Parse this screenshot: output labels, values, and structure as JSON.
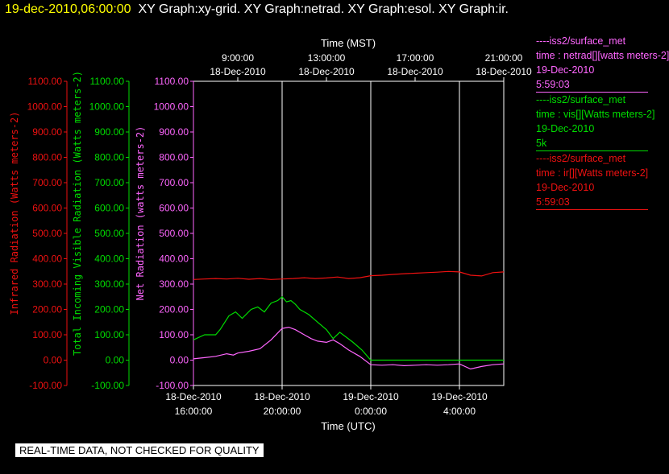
{
  "header": {
    "datetime": "19-dec-2010,06:00:00",
    "titles": "XY Graph:xy-grid.  XY Graph:netrad.  XY Graph:esol.  XY Graph:ir."
  },
  "legend": [
    {
      "color": "#ff66ff",
      "lines": [
        "----iss2/surface_met",
        "time : netrad[][watts meters-2]",
        "19-Dec-2010",
        "5:59:03"
      ]
    },
    {
      "color": "#00dd00",
      "lines": [
        "----iss2/surface_met",
        "time : vis[][Watts meters-2]",
        "19-Dec-2010",
        "5k"
      ]
    },
    {
      "color": "#ee1111",
      "lines": [
        "----iss2/surface_met",
        "time : ir[][Watts meters-2]",
        "19-Dec-2010",
        "5:59:03"
      ]
    }
  ],
  "note": "REAL-TIME DATA, NOT CHECKED FOR QUALITY",
  "colors": {
    "ir": "#ee1111",
    "vis": "#00dd00",
    "netrad": "#ff66ff",
    "grid": "#ffffff",
    "axis": "#ffffff"
  },
  "chart_data": {
    "type": "line",
    "top_axis": {
      "label": "Time (MST)",
      "ticks": [
        {
          "x": 2,
          "line1": "9:00:00",
          "line2": "18-Dec-2010"
        },
        {
          "x": 6,
          "line1": "13:00:00",
          "line2": "18-Dec-2010"
        },
        {
          "x": 10,
          "line1": "17:00:00",
          "line2": "18-Dec-2010"
        },
        {
          "x": 14,
          "line1": "21:00:00",
          "line2": "18-Dec-2010"
        }
      ]
    },
    "bottom_axis": {
      "label": "Time (UTC)",
      "ticks": [
        {
          "x": 0,
          "line1": "18-Dec-2010",
          "line2": "16:00:00"
        },
        {
          "x": 4,
          "line1": "18-Dec-2010",
          "line2": "20:00:00"
        },
        {
          "x": 8,
          "line1": "19-Dec-2010",
          "line2": "0:00:00"
        },
        {
          "x": 12,
          "line1": "19-Dec-2010",
          "line2": "4:00:00"
        }
      ]
    },
    "xlim": [
      0,
      14
    ],
    "x_units": "hours since 18-Dec-2010 16:00:00 UTC",
    "y_axes": [
      {
        "id": "ir",
        "label": "Infrared Radiation (Watts meters-2)",
        "ylim": [
          -100,
          1100
        ],
        "ticks": [
          "-100.00",
          "0.00",
          "100.00",
          "200.00",
          "300.00",
          "400.00",
          "500.00",
          "600.00",
          "700.00",
          "800.00",
          "900.00",
          "1000.00",
          "1100.00"
        ]
      },
      {
        "id": "vis",
        "label": "Total Incoming Visible Radiation (Watts meters-2)",
        "ylim": [
          -100,
          1100
        ],
        "ticks": [
          "-100.00",
          "0.00",
          "100.00",
          "200.00",
          "300.00",
          "400.00",
          "500.00",
          "600.00",
          "700.00",
          "800.00",
          "900.00",
          "1000.00",
          "1100.00"
        ]
      },
      {
        "id": "netrad",
        "label": "Net Radiation (watts meters-2)",
        "ylim": [
          -100,
          1100
        ],
        "ticks": [
          "-100.00",
          "0.00",
          "100.00",
          "200.00",
          "300.00",
          "400.00",
          "500.00",
          "600.00",
          "700.00",
          "800.00",
          "900.00",
          "1000.00",
          "1100.00"
        ]
      }
    ],
    "grid": true,
    "grid_x": [
      4,
      8,
      12
    ],
    "series": [
      {
        "name": "ir",
        "axis": "ir",
        "x": [
          0,
          0.5,
          1,
          1.5,
          2,
          2.5,
          3,
          3.5,
          4,
          4.5,
          5,
          5.5,
          6,
          6.5,
          7,
          7.5,
          8,
          8.5,
          9,
          9.5,
          10,
          10.5,
          11,
          11.5,
          12,
          12.5,
          13,
          13.5,
          14
        ],
        "values": [
          318,
          320,
          322,
          320,
          323,
          319,
          322,
          318,
          320,
          322,
          325,
          322,
          324,
          328,
          322,
          325,
          333,
          335,
          338,
          341,
          343,
          345,
          347,
          350,
          348,
          335,
          332,
          345,
          348
        ]
      },
      {
        "name": "vis",
        "axis": "vis",
        "x": [
          0,
          0.5,
          1,
          1.2,
          1.6,
          1.9,
          2.2,
          2.6,
          2.9,
          3.2,
          3.5,
          3.8,
          4,
          4.2,
          4.4,
          4.6,
          4.8,
          5.2,
          5.6,
          6,
          6.3,
          6.6,
          6.9,
          7.2,
          7.6,
          8,
          8.5,
          9,
          10,
          11,
          12,
          13,
          14
        ],
        "values": [
          80,
          100,
          100,
          120,
          175,
          190,
          165,
          200,
          210,
          190,
          225,
          235,
          250,
          230,
          235,
          220,
          200,
          180,
          150,
          120,
          85,
          110,
          90,
          70,
          40,
          0,
          0,
          0,
          0,
          0,
          0,
          0,
          0
        ]
      },
      {
        "name": "netrad",
        "axis": "netrad",
        "x": [
          0,
          0.5,
          1,
          1.5,
          1.8,
          2,
          2.5,
          3,
          3.5,
          4,
          4.3,
          4.6,
          5,
          5.3,
          5.6,
          6,
          6.3,
          6.6,
          7,
          7.5,
          8,
          8.5,
          9,
          9.5,
          10,
          10.5,
          11,
          11.5,
          12,
          12.5,
          13,
          13.5,
          14
        ],
        "values": [
          5,
          10,
          15,
          25,
          20,
          28,
          35,
          45,
          80,
          125,
          130,
          120,
          100,
          85,
          75,
          70,
          80,
          65,
          40,
          15,
          -18,
          -20,
          -18,
          -22,
          -20,
          -18,
          -20,
          -18,
          -15,
          -35,
          -25,
          -18,
          -15
        ]
      }
    ]
  }
}
